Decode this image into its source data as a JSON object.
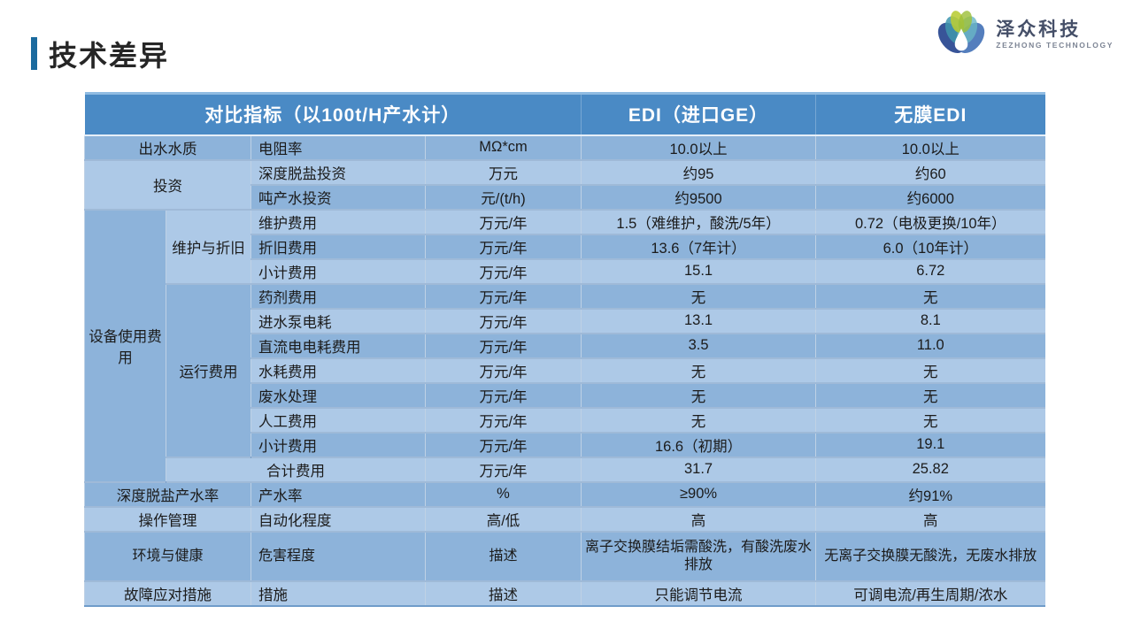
{
  "slide": {
    "title": "技术差异"
  },
  "logo": {
    "company": "泽众科技",
    "subtitle": "ZEZHONG TECHNOLOGY",
    "mark": "lotus-water-drop"
  },
  "colors": {
    "accent_bar": "#1b6a9e",
    "table_header": "#4a8ac5",
    "row_dark": "#8db3da",
    "row_light": "#adc9e7",
    "grid_line": "#6f9cca",
    "title_text": "#262626",
    "body_text": "#1b1b1b",
    "logo_text": "#454f68",
    "logo_subtext": "#7c8494",
    "logo_petal_dark_blue": "#27458f",
    "logo_petal_blue": "#3c6cb4",
    "logo_petal_teal": "#3f97ad",
    "logo_petal_light_teal": "#69b7c6",
    "logo_petal_yellow_green": "#b8cc33",
    "logo_petal_green": "#9dc03a"
  },
  "table": {
    "header": [
      {
        "text": "对比指标（以100t/H产水计）",
        "colspan": 4
      },
      {
        "text": "EDI（进口GE）",
        "colspan": 1
      },
      {
        "text": "无膜EDI",
        "colspan": 1
      }
    ],
    "rows": [
      {
        "band": "dark",
        "cells": [
          {
            "text": "出水水质",
            "colspan": 2,
            "role": "cat"
          },
          {
            "text": "电阻率",
            "role": "item"
          },
          {
            "text": "MΩ*cm",
            "role": "unit"
          },
          {
            "text": "10.0以上"
          },
          {
            "text": "10.0以上"
          }
        ]
      },
      {
        "band": "light",
        "cells": [
          {
            "text": "投资",
            "colspan": 2,
            "rowspan": 2,
            "role": "cat",
            "band": "light"
          },
          {
            "text": "深度脱盐投资",
            "role": "item"
          },
          {
            "text": "万元",
            "role": "unit"
          },
          {
            "text": "约95"
          },
          {
            "text": "约60"
          }
        ]
      },
      {
        "band": "dark",
        "cells": [
          {
            "text": "吨产水投资",
            "role": "item"
          },
          {
            "text": "元/(t/h)",
            "role": "unit"
          },
          {
            "text": "约9500"
          },
          {
            "text": "约6000"
          }
        ]
      },
      {
        "band": "light",
        "cells": [
          {
            "text": "设备使用费用",
            "rowspan": 11,
            "role": "cat",
            "band": "dark"
          },
          {
            "text": "维护与折旧",
            "rowspan": 3,
            "role": "cat",
            "band": "light"
          },
          {
            "text": "维护费用",
            "role": "item"
          },
          {
            "text": "万元/年",
            "role": "unit"
          },
          {
            "text": "1.5（难维护，酸洗/5年）"
          },
          {
            "text": "0.72（电极更换/10年）"
          }
        ]
      },
      {
        "band": "dark",
        "cells": [
          {
            "text": "折旧费用",
            "role": "item"
          },
          {
            "text": "万元/年",
            "role": "unit"
          },
          {
            "text": "13.6（7年计）"
          },
          {
            "text": "6.0（10年计）"
          }
        ]
      },
      {
        "band": "light",
        "cells": [
          {
            "text": "小计费用",
            "role": "item"
          },
          {
            "text": "万元/年",
            "role": "unit"
          },
          {
            "text": "15.1"
          },
          {
            "text": "6.72"
          }
        ]
      },
      {
        "band": "dark",
        "cells": [
          {
            "text": "运行费用",
            "rowspan": 7,
            "role": "cat",
            "band": "dark"
          },
          {
            "text": "药剂费用",
            "role": "item"
          },
          {
            "text": "万元/年",
            "role": "unit"
          },
          {
            "text": "无"
          },
          {
            "text": "无"
          }
        ]
      },
      {
        "band": "light",
        "cells": [
          {
            "text": "进水泵电耗",
            "role": "item"
          },
          {
            "text": "万元/年",
            "role": "unit"
          },
          {
            "text": "13.1"
          },
          {
            "text": "8.1"
          }
        ]
      },
      {
        "band": "dark",
        "cells": [
          {
            "text": "直流电电耗费用",
            "role": "item"
          },
          {
            "text": "万元/年",
            "role": "unit"
          },
          {
            "text": "3.5"
          },
          {
            "text": "11.0"
          }
        ]
      },
      {
        "band": "light",
        "cells": [
          {
            "text": "水耗费用",
            "role": "item"
          },
          {
            "text": "万元/年",
            "role": "unit"
          },
          {
            "text": "无"
          },
          {
            "text": "无"
          }
        ]
      },
      {
        "band": "dark",
        "cells": [
          {
            "text": "废水处理",
            "role": "item"
          },
          {
            "text": "万元/年",
            "role": "unit"
          },
          {
            "text": "无"
          },
          {
            "text": "无"
          }
        ]
      },
      {
        "band": "light",
        "cells": [
          {
            "text": "人工费用",
            "role": "item"
          },
          {
            "text": "万元/年",
            "role": "unit"
          },
          {
            "text": "无"
          },
          {
            "text": "无"
          }
        ]
      },
      {
        "band": "dark",
        "cells": [
          {
            "text": "小计费用",
            "role": "item"
          },
          {
            "text": "万元/年",
            "role": "unit"
          },
          {
            "text": "16.6（初期）"
          },
          {
            "text": "19.1"
          }
        ]
      },
      {
        "band": "light",
        "cells": [
          {
            "text": "合计费用",
            "colspan": 2,
            "role": "cat"
          },
          {
            "text": "万元/年",
            "role": "unit"
          },
          {
            "text": "31.7"
          },
          {
            "text": "25.82"
          }
        ]
      },
      {
        "band": "dark",
        "cells": [
          {
            "text": "深度脱盐产水率",
            "colspan": 2,
            "role": "cat"
          },
          {
            "text": "产水率",
            "role": "item"
          },
          {
            "text": "%",
            "role": "unit"
          },
          {
            "text": "≥90%"
          },
          {
            "text": "约91%"
          }
        ]
      },
      {
        "band": "light",
        "cells": [
          {
            "text": "操作管理",
            "colspan": 2,
            "role": "cat"
          },
          {
            "text": "自动化程度",
            "role": "item"
          },
          {
            "text": "高/低",
            "role": "unit"
          },
          {
            "text": "高"
          },
          {
            "text": "高"
          }
        ]
      },
      {
        "band": "dark",
        "tall": true,
        "cells": [
          {
            "text": "环境与健康",
            "colspan": 2,
            "role": "cat"
          },
          {
            "text": "危害程度",
            "role": "item"
          },
          {
            "text": "描述",
            "role": "unit"
          },
          {
            "text": "离子交换膜结垢需酸洗，有酸洗废水排放"
          },
          {
            "text": "无离子交换膜无酸洗，无废水排放"
          }
        ]
      },
      {
        "band": "light",
        "cells": [
          {
            "text": "故障应对措施",
            "colspan": 2,
            "role": "cat"
          },
          {
            "text": "措施",
            "role": "item"
          },
          {
            "text": "描述",
            "role": "unit"
          },
          {
            "text": "只能调节电流"
          },
          {
            "text": "可调电流/再生周期/浓水"
          }
        ]
      }
    ]
  }
}
